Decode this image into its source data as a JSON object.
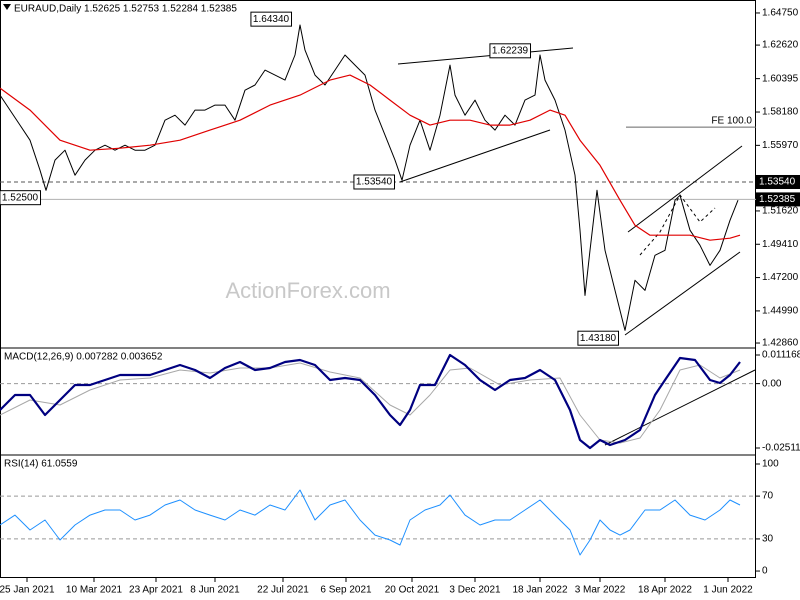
{
  "chart_data": [
    {
      "type": "line",
      "title": "EURAUD,Daily  1.52625 1.52753 1.52284 1.52385",
      "watermark": "ActionForex.com",
      "xlim": [
        0,
        378
      ],
      "ylim": [
        1.4253,
        1.6561
      ],
      "yticks": [
        {
          "value": 1.6475,
          "label": "1.64750"
        },
        {
          "value": 1.6262,
          "label": "1.62620"
        },
        1.60395,
        {
          "value": 1.5818,
          "label": "1.58180"
        },
        {
          "value": 1.5597,
          "label": "1.55970"
        },
        {
          "value": 1.5162,
          "label": "1.51620"
        },
        {
          "value": 1.4941,
          "label": "1.49410"
        },
        {
          "value": 1.472,
          "label": "1.47200"
        },
        {
          "value": 1.4499,
          "label": "1.44990"
        },
        {
          "value": 1.4286,
          "label": "1.42860"
        }
      ],
      "levels": [
        {
          "value": 1.5354,
          "label": "1.53540",
          "style": "dashed",
          "color": "#555555",
          "box": true
        },
        {
          "value": 1.52385,
          "label": "1.52385",
          "style": "solid",
          "color": "#b0b0b0",
          "box": true
        },
        {
          "value": 1.5718,
          "label": "FE 100.0",
          "style": "solid",
          "color": "#666666",
          "from": 313
        }
      ],
      "annotations": [
        {
          "text": "1.64340",
          "x": 135.5,
          "y": 1.6434
        },
        {
          "text": "1.62239",
          "x": 255,
          "y": 1.6224
        },
        {
          "text": "1.53540",
          "x": 187,
          "y": 1.5354
        },
        {
          "text": "1.52500",
          "x": 10,
          "y": 1.525
        },
        {
          "text": "1.43180",
          "x": 299,
          "y": 1.4318
        }
      ],
      "series": [
        {
          "color": "#000000",
          "line_width": 1,
          "x": [
            0,
            5,
            10,
            15,
            20,
            23,
            27.5,
            32.5,
            37.5,
            42.5,
            47.5,
            52.5,
            57.5,
            62.5,
            67.5,
            72.5,
            77.5,
            82.5,
            87.5,
            92.5,
            97.5,
            102.5,
            107.5,
            112.5,
            117.5,
            122.5,
            127.5,
            132.5,
            137.5,
            142.5,
            147.5,
            150,
            152.5,
            157.5,
            162.5,
            167.5,
            172.5,
            177.5,
            182.5,
            187.5,
            192.5,
            197.5,
            201,
            205,
            210,
            215,
            220,
            225,
            227.5,
            232.5,
            237.5,
            242.5,
            247.5,
            252.5,
            257.5,
            262.5,
            267.5,
            270,
            272.5,
            277.5,
            282.5,
            287.5,
            290,
            292.5,
            295,
            298.5,
            302.5,
            307.5,
            312.5,
            317.5,
            322.5,
            327.5,
            332.5,
            337.5,
            340,
            345,
            350,
            355,
            360,
            365,
            369
          ],
          "values": [
            1.593,
            1.5831,
            1.5731,
            1.5631,
            1.5432,
            1.5299,
            1.5499,
            1.5565,
            1.5399,
            1.5499,
            1.5565,
            1.5598,
            1.5565,
            1.5598,
            1.5565,
            1.5565,
            1.5598,
            1.5764,
            1.5797,
            1.5731,
            1.5831,
            1.5831,
            1.5864,
            1.5864,
            1.5764,
            1.5963,
            1.5997,
            1.6096,
            1.6063,
            1.603,
            1.6196,
            1.6395,
            1.6229,
            1.6063,
            1.5997,
            1.6096,
            1.6196,
            1.6129,
            1.6063,
            1.5831,
            1.5665,
            1.5499,
            1.5366,
            1.5598,
            1.5764,
            1.5565,
            1.5797,
            1.6129,
            1.593,
            1.5797,
            1.5897,
            1.5764,
            1.5698,
            1.5797,
            1.5731,
            1.5897,
            1.593,
            1.6196,
            1.603,
            1.5897,
            1.5698,
            1.5399,
            1.5034,
            1.4602,
            1.4901,
            1.5299,
            1.4901,
            1.4635,
            1.437,
            1.4702,
            1.4635,
            1.4868,
            1.4901,
            1.5233,
            1.5266,
            1.5034,
            1.4934,
            1.4801,
            1.4901,
            1.51,
            1.5233
          ]
        },
        {
          "color": "#e00000",
          "line_width": 1.2,
          "x": [
            0,
            15,
            30,
            45,
            60,
            75,
            90,
            105,
            120,
            135,
            150,
            165,
            175,
            185,
            195,
            205,
            215,
            225,
            235,
            245,
            255,
            265,
            275,
            282.5,
            290,
            300,
            310,
            317.5,
            325,
            335,
            345,
            355,
            365,
            370
          ],
          "values": [
            1.5977,
            1.5831,
            1.5631,
            1.5565,
            1.5578,
            1.5598,
            1.5631,
            1.5698,
            1.5764,
            1.5864,
            1.593,
            1.603,
            1.6063,
            1.5997,
            1.5897,
            1.5797,
            1.5731,
            1.5764,
            1.5764,
            1.5731,
            1.5731,
            1.5764,
            1.5831,
            1.5797,
            1.5631,
            1.5465,
            1.5233,
            1.5067,
            1.5001,
            1.5001,
            1.5001,
            1.4968,
            1.4981,
            1.5001
          ]
        }
      ]
    },
    {
      "type": "line",
      "title": "MACD(12,26,9) 0.007282 0.003652",
      "xlim": [
        0,
        378
      ],
      "ylim": [
        -0.02785,
        0.0139
      ],
      "yticks": [
        0.011168,
        {
          "value": 0,
          "label": "0.00"
        },
        -0.025117
      ],
      "levels": [
        {
          "value": 0,
          "style": "dashed",
          "color": "#999999"
        }
      ],
      "series": [
        {
          "color": "#a8a8a8",
          "line_width": 1,
          "x": [
            0,
            15,
            30,
            45,
            60,
            75,
            90,
            105,
            120,
            135,
            150,
            165,
            180,
            195,
            205,
            215,
            225,
            235,
            250,
            265,
            280,
            290,
            300,
            310,
            320,
            330,
            340,
            350,
            360,
            370
          ],
          "values": [
            -0.01223,
            -0.00638,
            -0.00833,
            -0.00248,
            0.00142,
            0.0022,
            0.00532,
            0.00415,
            0.0061,
            0.0061,
            0.00805,
            0.00454,
            0.0022,
            -0.00833,
            -0.01223,
            -0.00443,
            0.00532,
            0.0061,
            -0.00053,
            0.00142,
            0.0022,
            -0.01223,
            -0.02198,
            -0.02315,
            -0.0212,
            -0.01028,
            0.00532,
            0.00727,
            0.0022,
            0.00532
          ]
        },
        {
          "color": "#000080",
          "line_width": 2.2,
          "x": [
            0,
            7.5,
            15,
            22.5,
            30,
            37.5,
            45,
            52.5,
            60,
            67.5,
            75,
            82.5,
            90,
            97.5,
            105,
            112.5,
            120,
            127.5,
            135,
            142.5,
            150,
            157.5,
            165,
            172.5,
            180,
            187.5,
            195,
            200,
            205,
            210,
            217.5,
            225,
            232.5,
            240,
            247.5,
            255,
            262.5,
            270,
            277.5,
            285,
            290,
            295,
            300,
            305,
            312.5,
            320,
            327.5,
            332.5,
            340,
            347.5,
            355,
            360,
            365,
            370
          ],
          "values": [
            -0.01028,
            -0.00443,
            -0.00443,
            -0.01223,
            -0.00638,
            -0.00053,
            -0.00053,
            0.00142,
            0.00337,
            0.00337,
            0.00337,
            0.00532,
            0.00727,
            0.00532,
            0.0022,
            0.0061,
            0.00844,
            0.00532,
            0.0061,
            0.00844,
            0.00922,
            0.00727,
            0.00142,
            0.0022,
            0.00142,
            -0.00443,
            -0.01223,
            -0.01613,
            -0.01028,
            -0.00053,
            -0.00053,
            0.01117,
            0.00727,
            0.00142,
            -0.00248,
            0.00142,
            0.0022,
            0.00532,
            0.00142,
            -0.01028,
            -0.02198,
            -0.0251,
            -0.02198,
            -0.02393,
            -0.02198,
            -0.01808,
            -0.00443,
            0.00142,
            0.01,
            0.00922,
            0.00142,
            0.00025,
            0.00337,
            0.00844
          ]
        }
      ]
    },
    {
      "type": "line",
      "title": "RSI(14) 61.0559",
      "xlim": [
        0,
        378
      ],
      "ylim": [
        -6.5,
        108.4
      ],
      "yticks": [
        100,
        70,
        30,
        0
      ],
      "levels": [
        {
          "value": 70,
          "style": "dashed",
          "color": "#999999"
        },
        {
          "value": 30,
          "style": "dashed",
          "color": "#999999"
        }
      ],
      "xticks": [
        {
          "value": 13.5,
          "label": "25 Jan 2021"
        },
        {
          "value": 47,
          "label": "10 Mar 2021"
        },
        {
          "value": 78,
          "label": "23 Apr 2021"
        },
        {
          "value": 107.5,
          "label": "8 Jun 2021"
        },
        {
          "value": 141.5,
          "label": "22 Jul 2021"
        },
        {
          "value": 173,
          "label": "6 Sep 2021"
        },
        {
          "value": 206,
          "label": "20 Oct 2021"
        },
        {
          "value": 237.5,
          "label": "3 Dec 2021"
        },
        {
          "value": 270,
          "label": "18 Jan 2022"
        },
        {
          "value": 300,
          "label": "3 Mar 2022"
        },
        {
          "value": 332.5,
          "label": "18 Apr 2022"
        },
        {
          "value": 364,
          "label": "1 Jun 2022"
        }
      ],
      "series": [
        {
          "color": "#1e90ff",
          "line_width": 1,
          "x": [
            0,
            7.5,
            15,
            22.5,
            30,
            37.5,
            45,
            52.5,
            60,
            67.5,
            75,
            82.5,
            90,
            97.5,
            105,
            112.5,
            120,
            127.5,
            135,
            142.5,
            150,
            157.5,
            165,
            172.5,
            180,
            187.5,
            195,
            200,
            205,
            212.5,
            220,
            225,
            232.5,
            240,
            247.5,
            255,
            262.5,
            270,
            277.5,
            285,
            290,
            295,
            300,
            305,
            310,
            315,
            322.5,
            330,
            337.5,
            345,
            352.5,
            360,
            365,
            370
          ],
          "values": [
            43,
            52.3,
            38.3,
            47.7,
            29,
            43,
            52.3,
            57,
            57,
            47.7,
            52.3,
            61.7,
            66.4,
            57,
            52.3,
            47.7,
            57,
            52.3,
            61.7,
            57,
            75.7,
            47.7,
            61.7,
            66.4,
            47.7,
            33.6,
            29,
            24.3,
            47.7,
            57,
            61.7,
            71,
            52.3,
            43,
            47.7,
            47.7,
            57,
            66.4,
            52.3,
            38.3,
            15,
            29,
            47.7,
            38.3,
            33.6,
            38.3,
            57,
            57,
            66.4,
            52.3,
            47.7,
            57,
            66.4,
            61.7
          ]
        }
      ]
    }
  ]
}
